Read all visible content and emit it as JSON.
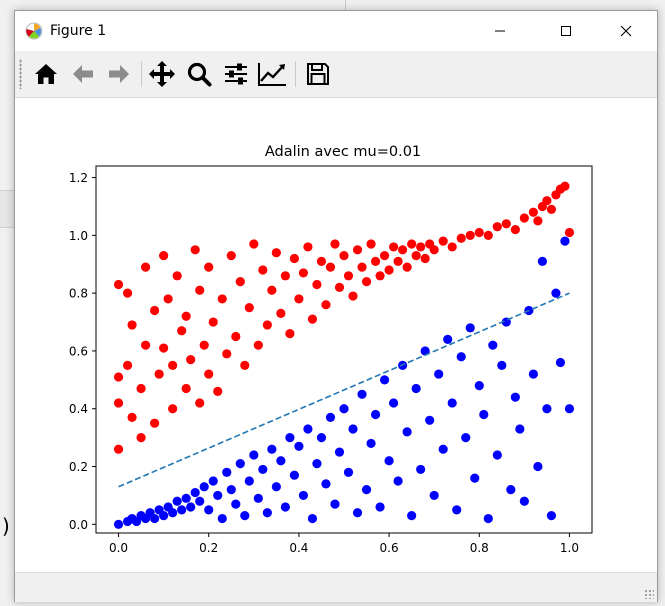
{
  "window": {
    "title": "Figure 1"
  },
  "toolbar": {
    "tools": [
      {
        "name": "home-icon"
      },
      {
        "name": "back-arrow-icon"
      },
      {
        "name": "forward-arrow-icon"
      },
      {
        "name": "pan-move-icon"
      },
      {
        "name": "zoom-magnifier-icon"
      },
      {
        "name": "configure-subplots-icon"
      },
      {
        "name": "edit-axis-icon"
      },
      {
        "name": "save-floppy-icon"
      }
    ]
  },
  "colors": {
    "class_a": "#ff0000",
    "class_b": "#0000ff",
    "boundary": "#1f77b4"
  },
  "chart_data": {
    "type": "scatter",
    "title": "Adalin avec mu=0.01",
    "xlabel": "",
    "ylabel": "",
    "xlim": [
      -0.05,
      1.05
    ],
    "ylim": [
      -0.03,
      1.24
    ],
    "xticks": [
      "0.0",
      "0.2",
      "0.4",
      "0.6",
      "0.8",
      "1.0"
    ],
    "yticks": [
      "0.0",
      "0.2",
      "0.4",
      "0.6",
      "0.8",
      "1.0",
      "1.2"
    ],
    "series": [
      {
        "color": "#ff0000",
        "marker": "circle",
        "points": [
          [
            0.0,
            0.26
          ],
          [
            0.0,
            0.42
          ],
          [
            0.0,
            0.51
          ],
          [
            0.0,
            0.83
          ],
          [
            0.02,
            0.8
          ],
          [
            0.02,
            0.55
          ],
          [
            0.03,
            0.37
          ],
          [
            0.03,
            0.69
          ],
          [
            0.05,
            0.3
          ],
          [
            0.05,
            0.47
          ],
          [
            0.06,
            0.62
          ],
          [
            0.06,
            0.89
          ],
          [
            0.08,
            0.35
          ],
          [
            0.08,
            0.74
          ],
          [
            0.09,
            0.52
          ],
          [
            0.1,
            0.61
          ],
          [
            0.1,
            0.93
          ],
          [
            0.11,
            0.78
          ],
          [
            0.12,
            0.4
          ],
          [
            0.12,
            0.55
          ],
          [
            0.13,
            0.86
          ],
          [
            0.14,
            0.67
          ],
          [
            0.15,
            0.47
          ],
          [
            0.15,
            0.72
          ],
          [
            0.16,
            0.57
          ],
          [
            0.17,
            0.95
          ],
          [
            0.18,
            0.42
          ],
          [
            0.18,
            0.81
          ],
          [
            0.19,
            0.62
          ],
          [
            0.2,
            0.89
          ],
          [
            0.2,
            0.52
          ],
          [
            0.21,
            0.7
          ],
          [
            0.22,
            0.46
          ],
          [
            0.23,
            0.78
          ],
          [
            0.24,
            0.59
          ],
          [
            0.25,
            0.93
          ],
          [
            0.26,
            0.65
          ],
          [
            0.27,
            0.84
          ],
          [
            0.28,
            0.55
          ],
          [
            0.29,
            0.75
          ],
          [
            0.3,
            0.97
          ],
          [
            0.31,
            0.62
          ],
          [
            0.32,
            0.88
          ],
          [
            0.33,
            0.69
          ],
          [
            0.34,
            0.81
          ],
          [
            0.35,
            0.94
          ],
          [
            0.36,
            0.73
          ],
          [
            0.37,
            0.86
          ],
          [
            0.38,
            0.66
          ],
          [
            0.39,
            0.92
          ],
          [
            0.4,
            0.78
          ],
          [
            0.41,
            0.87
          ],
          [
            0.42,
            0.96
          ],
          [
            0.43,
            0.71
          ],
          [
            0.44,
            0.83
          ],
          [
            0.45,
            0.91
          ],
          [
            0.46,
            0.76
          ],
          [
            0.47,
            0.89
          ],
          [
            0.48,
            0.97
          ],
          [
            0.49,
            0.82
          ],
          [
            0.5,
            0.93
          ],
          [
            0.51,
            0.86
          ],
          [
            0.52,
            0.79
          ],
          [
            0.53,
            0.95
          ],
          [
            0.54,
            0.89
          ],
          [
            0.55,
            0.84
          ],
          [
            0.56,
            0.97
          ],
          [
            0.57,
            0.91
          ],
          [
            0.58,
            0.86
          ],
          [
            0.59,
            0.93
          ],
          [
            0.6,
            0.88
          ],
          [
            0.61,
            0.96
          ],
          [
            0.62,
            0.91
          ],
          [
            0.63,
            0.95
          ],
          [
            0.64,
            0.89
          ],
          [
            0.65,
            0.97
          ],
          [
            0.66,
            0.93
          ],
          [
            0.67,
            0.96
          ],
          [
            0.68,
            0.92
          ],
          [
            0.69,
            0.97
          ],
          [
            0.7,
            0.95
          ],
          [
            0.72,
            0.98
          ],
          [
            0.74,
            0.96
          ],
          [
            0.76,
            0.99
          ],
          [
            0.78,
            1.0
          ],
          [
            0.8,
            1.01
          ],
          [
            0.82,
            1.0
          ],
          [
            0.84,
            1.03
          ],
          [
            0.86,
            1.04
          ],
          [
            0.88,
            1.02
          ],
          [
            0.9,
            1.06
          ],
          [
            0.92,
            1.08
          ],
          [
            0.93,
            1.05
          ],
          [
            0.94,
            1.1
          ],
          [
            0.95,
            1.12
          ],
          [
            0.96,
            1.09
          ],
          [
            0.97,
            1.14
          ],
          [
            0.98,
            1.16
          ],
          [
            0.99,
            1.17
          ],
          [
            1.0,
            1.01
          ]
        ]
      },
      {
        "color": "#0000ff",
        "marker": "circle",
        "points": [
          [
            0.0,
            0.0
          ],
          [
            0.02,
            0.01
          ],
          [
            0.03,
            0.02
          ],
          [
            0.04,
            0.01
          ],
          [
            0.05,
            0.03
          ],
          [
            0.06,
            0.02
          ],
          [
            0.07,
            0.04
          ],
          [
            0.08,
            0.02
          ],
          [
            0.09,
            0.05
          ],
          [
            0.1,
            0.03
          ],
          [
            0.11,
            0.06
          ],
          [
            0.12,
            0.04
          ],
          [
            0.13,
            0.08
          ],
          [
            0.14,
            0.05
          ],
          [
            0.15,
            0.09
          ],
          [
            0.16,
            0.06
          ],
          [
            0.17,
            0.11
          ],
          [
            0.18,
            0.08
          ],
          [
            0.19,
            0.13
          ],
          [
            0.2,
            0.05
          ],
          [
            0.21,
            0.15
          ],
          [
            0.22,
            0.1
          ],
          [
            0.23,
            0.02
          ],
          [
            0.24,
            0.18
          ],
          [
            0.25,
            0.12
          ],
          [
            0.26,
            0.07
          ],
          [
            0.27,
            0.21
          ],
          [
            0.28,
            0.03
          ],
          [
            0.29,
            0.15
          ],
          [
            0.3,
            0.24
          ],
          [
            0.31,
            0.09
          ],
          [
            0.32,
            0.19
          ],
          [
            0.33,
            0.04
          ],
          [
            0.34,
            0.26
          ],
          [
            0.35,
            0.13
          ],
          [
            0.36,
            0.22
          ],
          [
            0.37,
            0.06
          ],
          [
            0.38,
            0.3
          ],
          [
            0.39,
            0.17
          ],
          [
            0.4,
            0.27
          ],
          [
            0.41,
            0.1
          ],
          [
            0.42,
            0.33
          ],
          [
            0.43,
            0.02
          ],
          [
            0.44,
            0.21
          ],
          [
            0.45,
            0.3
          ],
          [
            0.46,
            0.14
          ],
          [
            0.47,
            0.37
          ],
          [
            0.48,
            0.07
          ],
          [
            0.49,
            0.25
          ],
          [
            0.5,
            0.4
          ],
          [
            0.51,
            0.18
          ],
          [
            0.52,
            0.33
          ],
          [
            0.53,
            0.04
          ],
          [
            0.54,
            0.45
          ],
          [
            0.55,
            0.12
          ],
          [
            0.56,
            0.28
          ],
          [
            0.57,
            0.38
          ],
          [
            0.58,
            0.06
          ],
          [
            0.59,
            0.5
          ],
          [
            0.6,
            0.22
          ],
          [
            0.61,
            0.42
          ],
          [
            0.62,
            0.15
          ],
          [
            0.63,
            0.55
          ],
          [
            0.64,
            0.32
          ],
          [
            0.65,
            0.03
          ],
          [
            0.66,
            0.47
          ],
          [
            0.67,
            0.19
          ],
          [
            0.68,
            0.6
          ],
          [
            0.69,
            0.36
          ],
          [
            0.7,
            0.1
          ],
          [
            0.71,
            0.52
          ],
          [
            0.72,
            0.26
          ],
          [
            0.73,
            0.64
          ],
          [
            0.74,
            0.42
          ],
          [
            0.75,
            0.05
          ],
          [
            0.76,
            0.58
          ],
          [
            0.77,
            0.3
          ],
          [
            0.78,
            0.68
          ],
          [
            0.79,
            0.16
          ],
          [
            0.8,
            0.48
          ],
          [
            0.81,
            0.38
          ],
          [
            0.82,
            0.02
          ],
          [
            0.83,
            0.62
          ],
          [
            0.84,
            0.24
          ],
          [
            0.85,
            0.55
          ],
          [
            0.86,
            0.7
          ],
          [
            0.87,
            0.12
          ],
          [
            0.88,
            0.44
          ],
          [
            0.89,
            0.33
          ],
          [
            0.9,
            0.08
          ],
          [
            0.91,
            0.74
          ],
          [
            0.92,
            0.52
          ],
          [
            0.93,
            0.2
          ],
          [
            0.94,
            0.91
          ],
          [
            0.95,
            0.4
          ],
          [
            0.96,
            0.03
          ],
          [
            0.97,
            0.8
          ],
          [
            0.98,
            0.56
          ],
          [
            0.99,
            0.98
          ],
          [
            1.0,
            0.4
          ]
        ]
      }
    ],
    "lines": [
      {
        "style": "dashed",
        "color": "#1f77b4",
        "points": [
          [
            0.0,
            0.13
          ],
          [
            1.0,
            0.8
          ]
        ]
      }
    ]
  }
}
